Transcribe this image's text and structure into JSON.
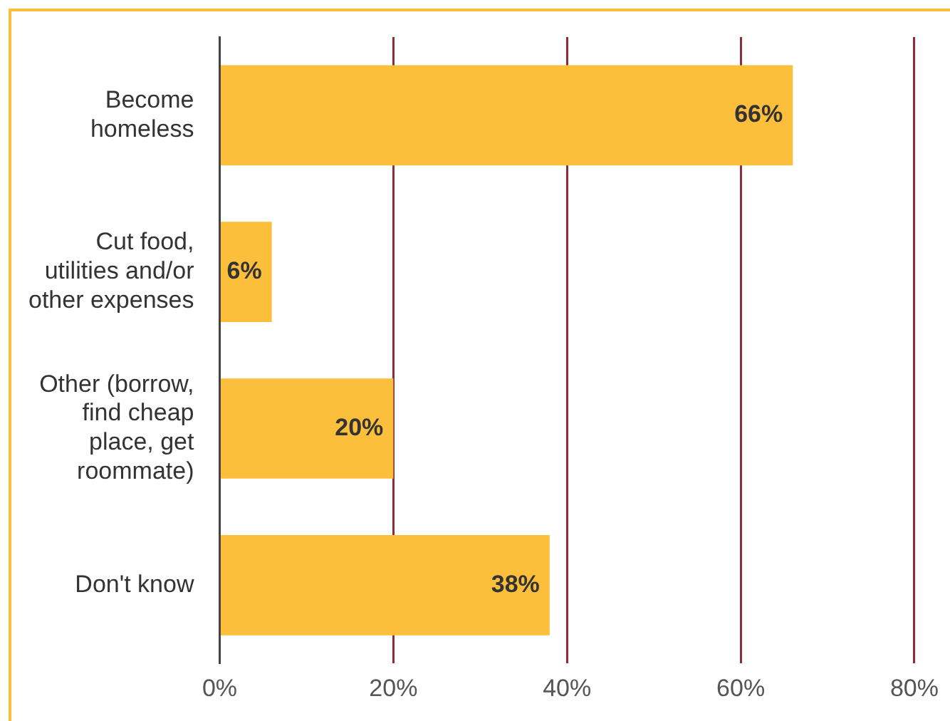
{
  "chart_data": {
    "type": "bar",
    "orientation": "horizontal",
    "categories": [
      "Become homeless",
      "Cut food, utilities and/or other expenses",
      "Other (borrow, find cheap place, get roommate)",
      "Don't know"
    ],
    "values": [
      66,
      6,
      20,
      38
    ],
    "value_labels": [
      "66%",
      "6%",
      "20%",
      "38%"
    ],
    "color": "#fcbf3c",
    "xlim": [
      0,
      80
    ],
    "xticks": [
      {
        "value": 0,
        "label": "0%"
      },
      {
        "value": 20,
        "label": "20%"
      },
      {
        "value": 40,
        "label": "40%"
      },
      {
        "value": 60,
        "label": "60%"
      },
      {
        "value": 80,
        "label": "80%"
      }
    ],
    "grid": "x",
    "legend": false
  }
}
